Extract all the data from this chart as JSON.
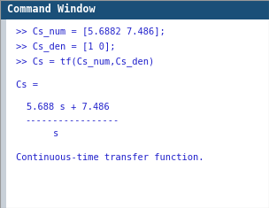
{
  "title_text": "Command Window",
  "title_bg_color": "#1a4f78",
  "title_text_color": "#ffffff",
  "body_bg_color": "#ffffff",
  "sidebar_color": "#c8d0d8",
  "font_family": "monospace",
  "lines": [
    ">> Cs_num = [5.6882 7.486];",
    ">> Cs_den = [1 0];",
    ">> Cs = tf(Cs_num,Cs_den)"
  ],
  "result_label": "Cs =",
  "numerator": "5.688 s + 7.486",
  "dashes": "-----------------",
  "denominator": "s",
  "footer": "Continuous-time transfer function.",
  "code_color": "#2222cc",
  "title_fontsize": 8.5,
  "code_fontsize": 7.5,
  "fig_width": 3.04,
  "fig_height": 2.35,
  "dpi": 100
}
